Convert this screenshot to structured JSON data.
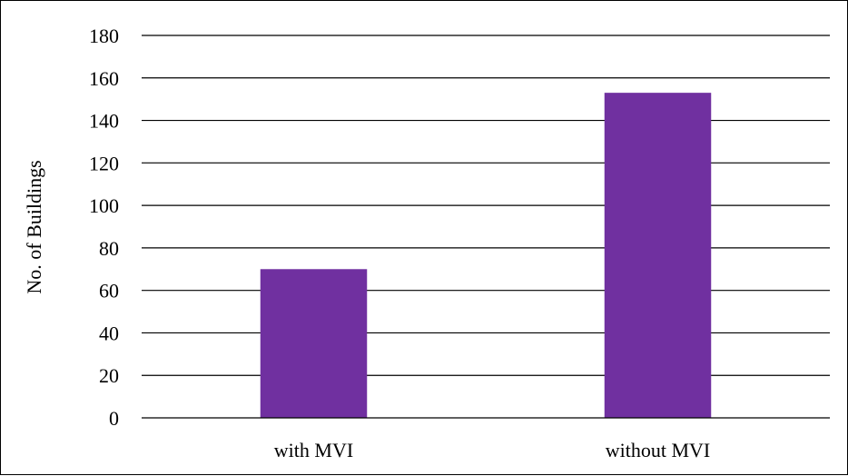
{
  "chart_data": {
    "type": "bar",
    "title": "",
    "xlabel": "",
    "ylabel": "No. of Buildings",
    "categories": [
      "with MVI",
      "without MVI"
    ],
    "values": [
      70,
      153
    ],
    "ylim": [
      0,
      180
    ],
    "yticks": [
      0,
      20,
      40,
      60,
      80,
      100,
      120,
      140,
      160,
      180
    ],
    "grid": true,
    "legend": "none",
    "bar_color": "#7030A0"
  }
}
